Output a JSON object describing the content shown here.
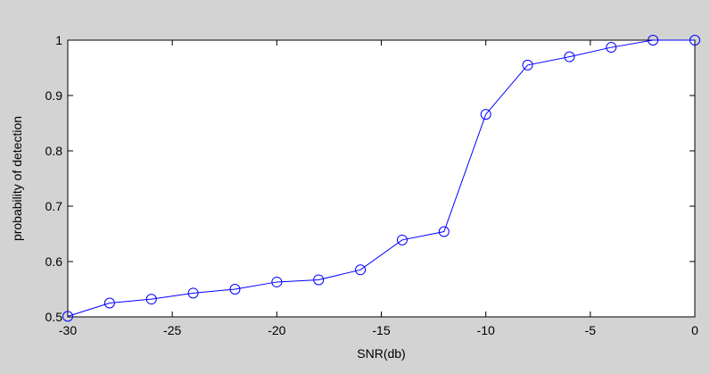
{
  "chart_data": {
    "type": "line",
    "title": "",
    "xlabel": "SNR(db)",
    "ylabel": "probability of detection",
    "xlim": [
      -30,
      0
    ],
    "ylim": [
      0.5,
      1
    ],
    "xticks": [
      -30,
      -25,
      -20,
      -15,
      -10,
      -5,
      0
    ],
    "xtick_labels": [
      "-30",
      "-25",
      "-20",
      "-15",
      "-10",
      "-5",
      "0"
    ],
    "yticks": [
      0.5,
      0.6,
      0.7,
      0.8,
      0.9,
      1
    ],
    "ytick_labels": [
      "0.5",
      "0.6",
      "0.7",
      "0.8",
      "0.9",
      "1"
    ],
    "grid": false,
    "line_color": "#0000ff",
    "marker": "circle",
    "series": [
      {
        "x": [
          -30,
          -28,
          -26,
          -24,
          -22,
          -20,
          -18,
          -16,
          -14,
          -12,
          -10,
          -8,
          -6,
          -4,
          -2,
          0
        ],
        "values": [
          0.501,
          0.525,
          0.532,
          0.543,
          0.55,
          0.563,
          0.567,
          0.585,
          0.639,
          0.654,
          0.866,
          0.955,
          0.97,
          0.987,
          1.0,
          1.0
        ]
      }
    ]
  }
}
